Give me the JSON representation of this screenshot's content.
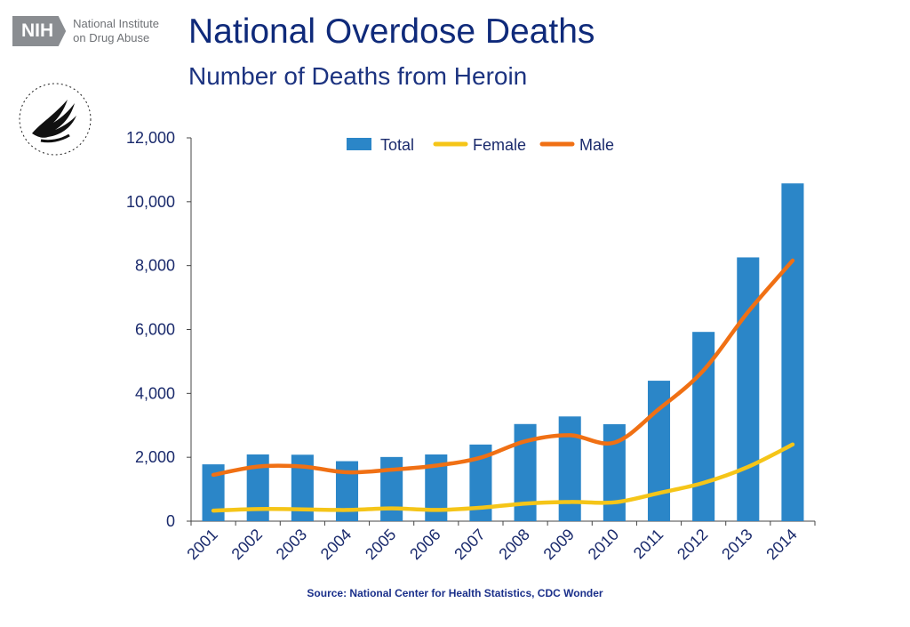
{
  "header": {
    "org_badge": "NIH",
    "org_name_line1": "National Institute",
    "org_name_line2": "on Drug Abuse",
    "seal_icon": "hhs-eagle-seal-icon"
  },
  "chart_data": {
    "type": "bar",
    "title": "National Overdose Deaths",
    "subtitle": "Number of Deaths from Heroin",
    "xlabel": "",
    "ylabel": "",
    "categories": [
      "2001",
      "2002",
      "2003",
      "2004",
      "2005",
      "2006",
      "2007",
      "2008",
      "2009",
      "2010",
      "2011",
      "2012",
      "2013",
      "2014"
    ],
    "ylim": [
      0,
      12000
    ],
    "yticks": [
      0,
      2000,
      4000,
      6000,
      8000,
      10000,
      12000
    ],
    "ytick_labels": [
      "0",
      "2,000",
      "4,000",
      "6,000",
      "8,000",
      "10,000",
      "12,000"
    ],
    "legend_position": "top",
    "grid": false,
    "series": [
      {
        "name": "Total",
        "type": "bar",
        "color": "#2b86c8",
        "values": [
          1779,
          2089,
          2080,
          1878,
          2009,
          2088,
          2399,
          3041,
          3278,
          3036,
          4397,
          5925,
          8257,
          10574
        ]
      },
      {
        "name": "Female",
        "type": "line",
        "color": "#f5c518",
        "values": [
          330,
          380,
          370,
          350,
          400,
          350,
          420,
          550,
          600,
          590,
          880,
          1200,
          1700,
          2400
        ]
      },
      {
        "name": "Male",
        "type": "line",
        "color": "#f07014",
        "values": [
          1450,
          1710,
          1710,
          1530,
          1610,
          1740,
          1990,
          2500,
          2690,
          2460,
          3510,
          4720,
          6550,
          8160
        ]
      }
    ]
  },
  "source": "Source: National Center for Health Statistics, CDC Wonder"
}
